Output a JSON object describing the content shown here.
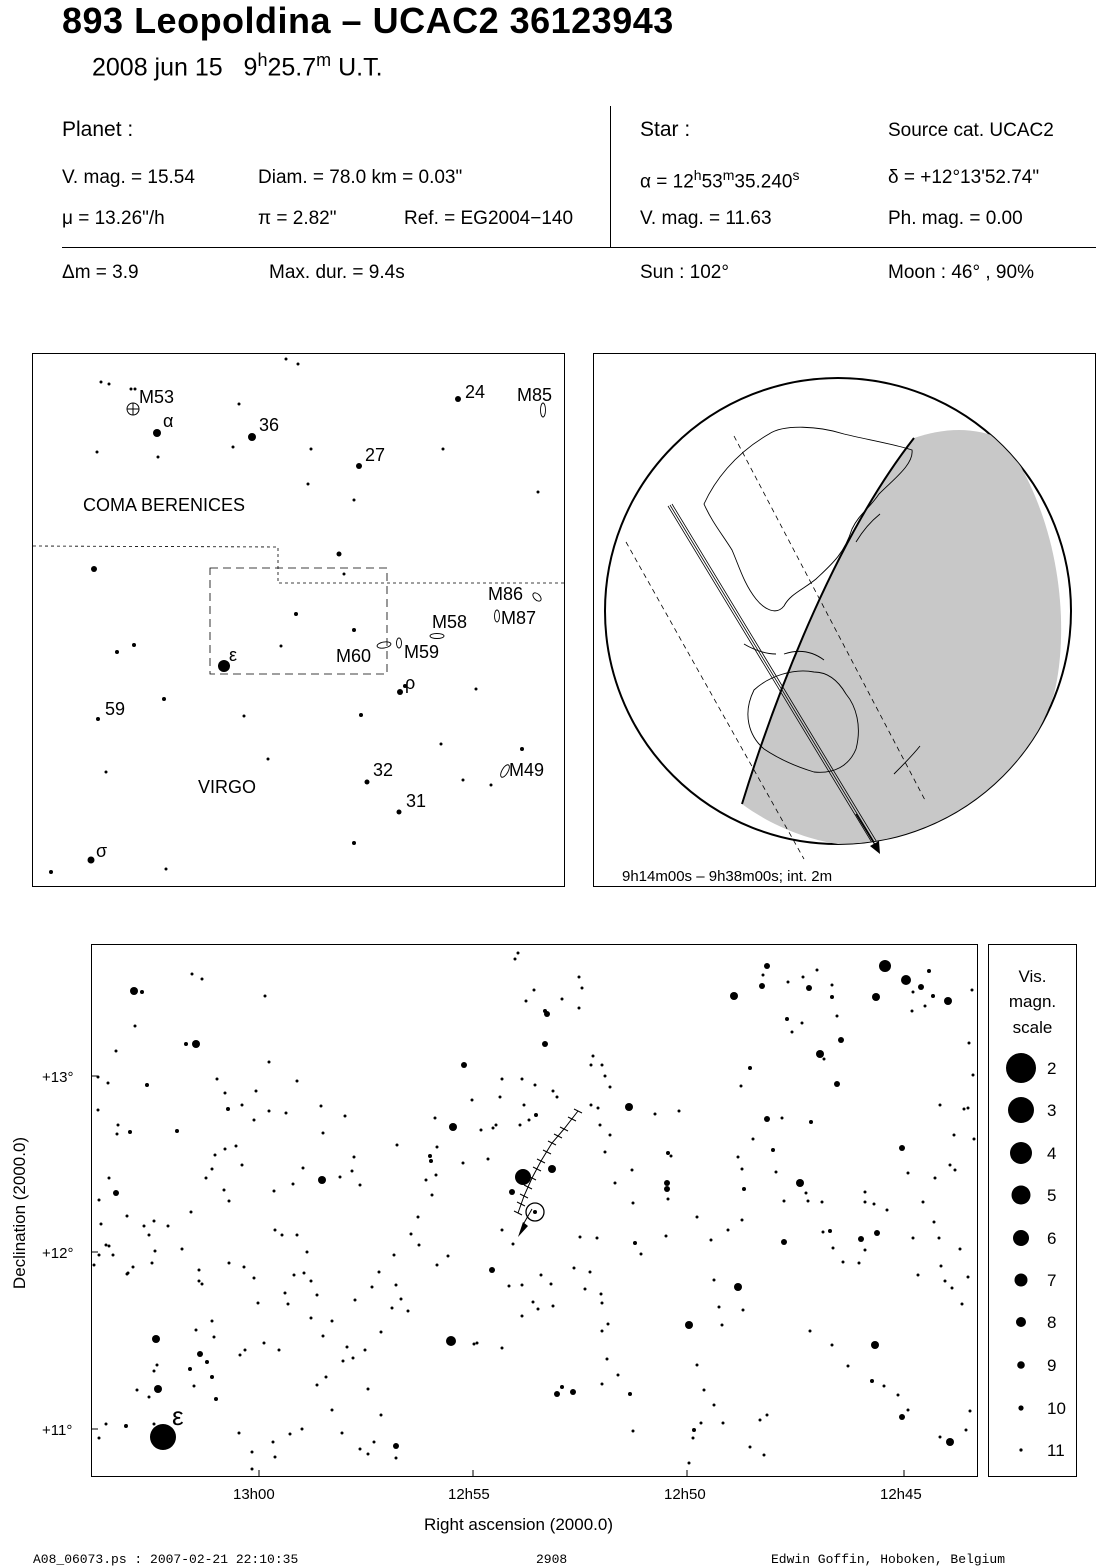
{
  "header": {
    "title": "893 Leopoldina  –  UCAC2 36123943",
    "date": "2008 jun 15",
    "time_h": "9",
    "time_h_unit": "h",
    "time_m": "25.7",
    "time_m_unit": "m",
    "time_suffix": "U.T."
  },
  "planet": {
    "heading": "Planet :",
    "vmag": "V. mag. = 15.54",
    "diam": "Diam. = 78.0 km = 0.03\"",
    "mu": "μ =  13.26\"/h",
    "pi": "π =  2.82\"",
    "ref": "Ref. = EG2004−140"
  },
  "star": {
    "heading": "Star :",
    "source": "Source cat.  UCAC2",
    "alpha_pre": "α = 12",
    "alpha_h": "h",
    "alpha_mid": "53",
    "alpha_m": "m",
    "alpha_val": "35.240",
    "alpha_s": "s",
    "delta": "δ = +12°13'52.74\"",
    "vmag": "V. mag. = 11.63",
    "phmag": "Ph. mag. =  0.00"
  },
  "event": {
    "dm": "Δm = 3.9",
    "maxdur": "Max. dur. = 9.4s",
    "sun": "Sun : 102°",
    "moon": "Moon :  46° , 90%"
  },
  "finder": {
    "labels": {
      "m53": "M53",
      "alpha": "α",
      "n36": "36",
      "n24": "24",
      "m85": "M85",
      "n27": "27",
      "coma": "COMA BERENICES",
      "m86": "M86",
      "m87": "M87",
      "m58": "M58",
      "m60": "M60",
      "m59": "M59",
      "eps": "ε",
      "rho": "ρ",
      "n59": "59",
      "virgo": "VIRGO",
      "n32": "32",
      "n31": "31",
      "sigma": "σ",
      "m49": "M49"
    }
  },
  "globe": {
    "caption": "9h14m00s –  9h38m00s; int.  2m"
  },
  "chart": {
    "y_ticks": [
      "+13°",
      "+12°",
      "+11°"
    ],
    "x_ticks": [
      "13h00",
      "12h55",
      "12h50",
      "12h45"
    ],
    "xlabel": "Right ascension (2000.0)",
    "ylabel": "Declination (2000.0)",
    "eps_label": "ε"
  },
  "legend": {
    "title_1": "Vis.",
    "title_2": "magn.",
    "title_3": "scale",
    "items": [
      "2",
      "3",
      "4",
      "5",
      "6",
      "7",
      "8",
      "9",
      "10",
      "11"
    ]
  },
  "footer": {
    "left": "A08_06073.ps : 2007-02-21 22:10:35",
    "center": "2908",
    "right": "Edwin Goffin, Hoboken, Belgium"
  }
}
